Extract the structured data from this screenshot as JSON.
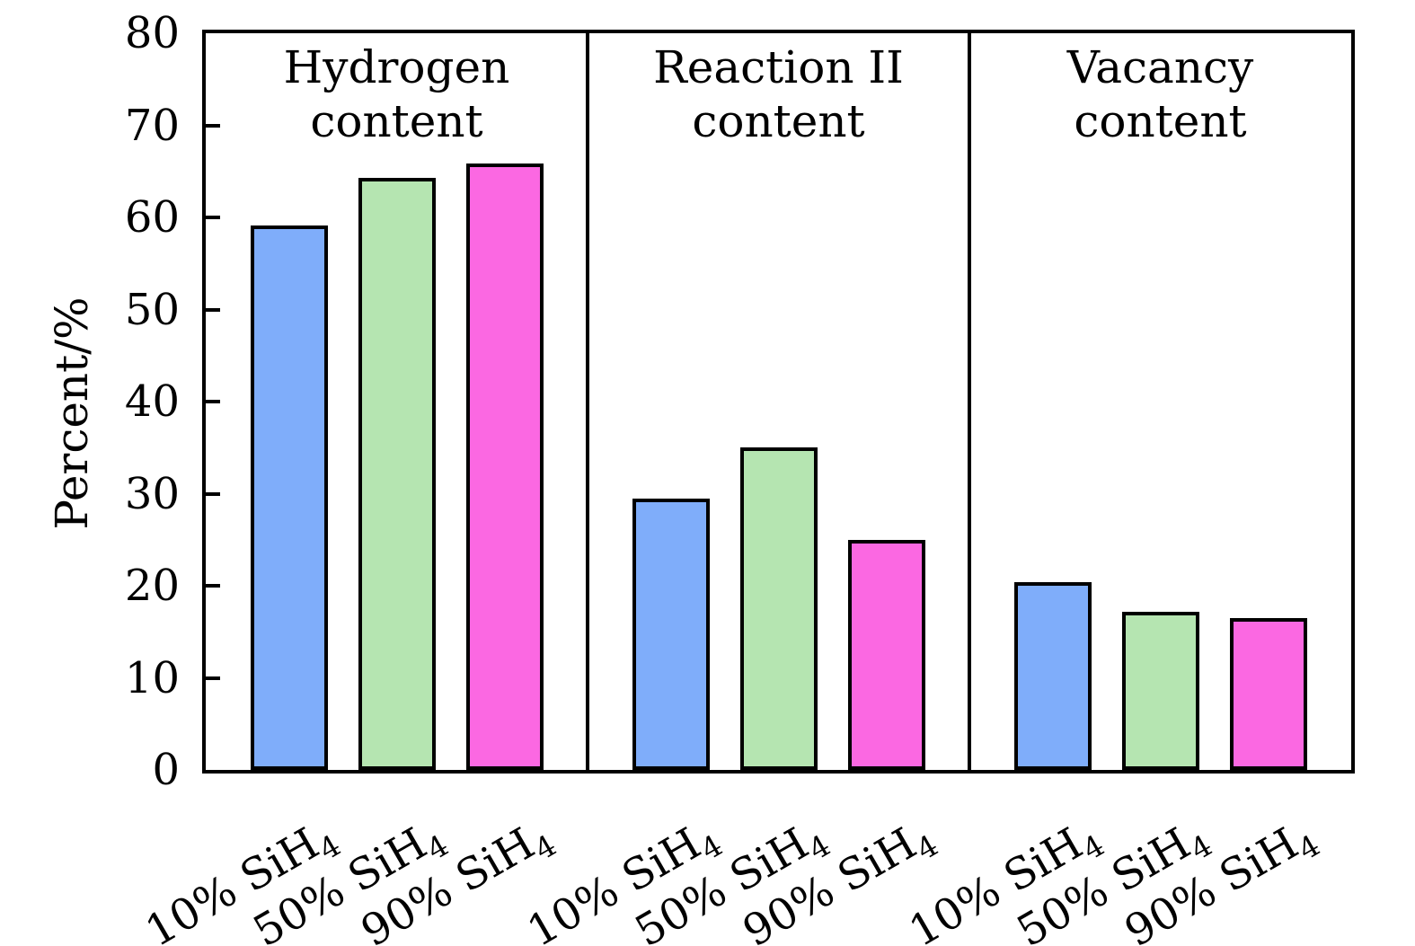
{
  "chart_data": {
    "type": "bar",
    "title": "",
    "ylabel": "Percent/%",
    "xlabel": "",
    "ylim": [
      0,
      80
    ],
    "yticks": [
      0,
      10,
      20,
      30,
      40,
      50,
      60,
      70,
      80
    ],
    "grid": false,
    "legend": null,
    "panels": [
      {
        "title_lines": [
          "Hydrogen",
          "content"
        ],
        "values": [
          59.1,
          64.3,
          65.9
        ]
      },
      {
        "title_lines": [
          "Reaction II",
          "content"
        ],
        "values": [
          29.5,
          35.0,
          25.0
        ]
      },
      {
        "title_lines": [
          "Vacancy",
          "content"
        ],
        "values": [
          20.4,
          17.2,
          16.5
        ]
      }
    ],
    "categories": [
      {
        "text": "10% SiH",
        "sub": "4"
      },
      {
        "text": "50% SiH",
        "sub": "4"
      },
      {
        "text": "90% SiH",
        "sub": "4"
      }
    ],
    "bar_fill_colors": [
      "#7FADFA",
      "#B5E5B1",
      "#FB68E2"
    ],
    "bar_edge_color": "#000000",
    "axis_color": "#000000",
    "background_color": "#FFFFFF"
  }
}
